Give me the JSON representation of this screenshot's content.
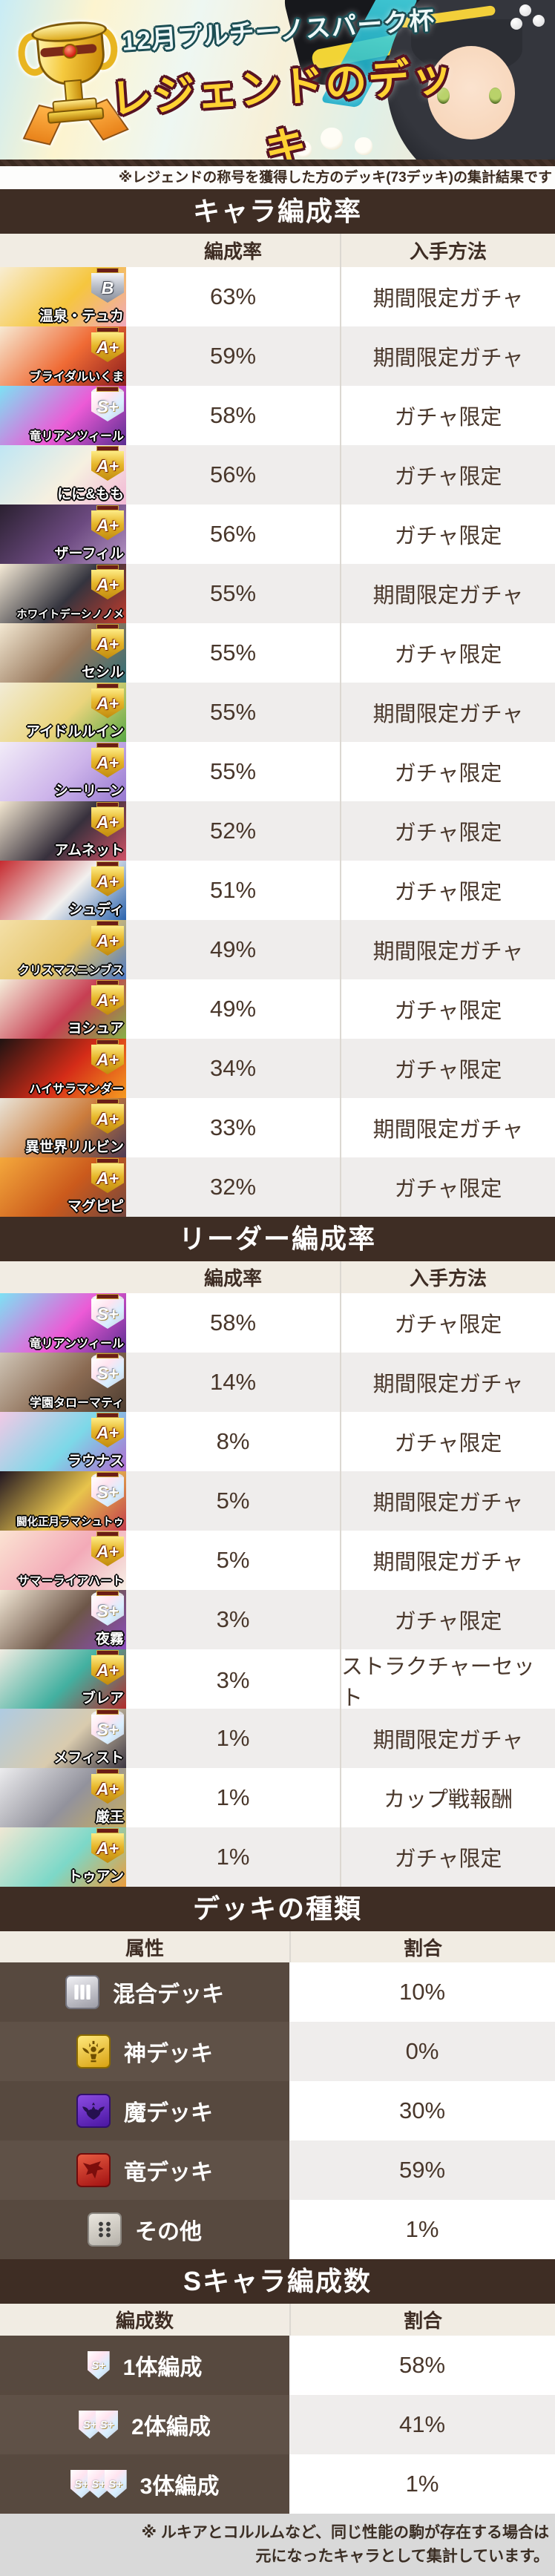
{
  "banner": {
    "subtitle": "12月プルチーノスパーク杯",
    "title": "レジェンドのデッキ"
  },
  "note": "※レジェンドの称号を獲得した方のデッキ(73デッキ)の集計結果です",
  "char_section": {
    "title": "キャラ編成率",
    "col_rate": "編成率",
    "col_method": "入手方法",
    "rows": [
      {
        "name": "温泉・テュカ",
        "badge": "B",
        "rate": "63%",
        "method": "期間限定ガチャ",
        "colors": [
          "#f8edd2",
          "#f6c63e",
          "#f0a8bc"
        ]
      },
      {
        "name": "ブライダルいくま",
        "badge": "A+",
        "rate": "59%",
        "method": "期間限定ガチャ",
        "colors": [
          "#f7e9d2",
          "#ef6a34",
          "#8c1d1d"
        ]
      },
      {
        "name": "竜リアンツィール",
        "badge": "S+",
        "rate": "58%",
        "method": "ガチャ限定",
        "colors": [
          "#7de2f4",
          "#ec5ad6",
          "#5c2e92"
        ]
      },
      {
        "name": "にに&もも",
        "badge": "A+",
        "rate": "56%",
        "method": "ガチャ限定",
        "colors": [
          "#bfe6f4",
          "#f6f0e0",
          "#f2b8d6"
        ]
      },
      {
        "name": "ザーフィル",
        "badge": "A+",
        "rate": "56%",
        "method": "ガチャ限定",
        "colors": [
          "#2a2030",
          "#6c4a80",
          "#b493c4"
        ]
      },
      {
        "name": "ホワイトデーシノノメ",
        "badge": "A+",
        "rate": "55%",
        "method": "期間限定ガチャ",
        "colors": [
          "#f5ead6",
          "#34343e",
          "#c33b2c"
        ]
      },
      {
        "name": "セシル",
        "badge": "A+",
        "rate": "55%",
        "method": "ガチャ限定",
        "colors": [
          "#f3e8d2",
          "#96765a",
          "#2e6e78"
        ]
      },
      {
        "name": "アイドルルイン",
        "badge": "A+",
        "rate": "55%",
        "method": "期間限定ガチャ",
        "colors": [
          "#f2ecd6",
          "#ead47c",
          "#58a844"
        ]
      },
      {
        "name": "シーリーン",
        "badge": "A+",
        "rate": "55%",
        "method": "ガチャ限定",
        "colors": [
          "#f2ecf8",
          "#cdb4ea",
          "#9678d0"
        ]
      },
      {
        "name": "アムネット",
        "badge": "A+",
        "rate": "52%",
        "method": "ガチャ限定",
        "colors": [
          "#f2e6d0",
          "#37303c",
          "#cf5266"
        ]
      },
      {
        "name": "シュディ",
        "badge": "A+",
        "rate": "51%",
        "method": "ガチャ限定",
        "colors": [
          "#c62b30",
          "#f2f0ee",
          "#2a63ae"
        ]
      },
      {
        "name": "クリスマスニンブス",
        "badge": "A+",
        "rate": "49%",
        "method": "期間限定ガチャ",
        "colors": [
          "#f4e0a8",
          "#e5c469",
          "#4a77c4"
        ]
      },
      {
        "name": "ヨシュア",
        "badge": "A+",
        "rate": "49%",
        "method": "ガチャ限定",
        "colors": [
          "#f5edda",
          "#c73e52",
          "#86b048"
        ]
      },
      {
        "name": "ハイサラマンダー",
        "badge": "A+",
        "rate": "34%",
        "method": "ガチャ限定",
        "colors": [
          "#201312",
          "#d52c18",
          "#f69b20"
        ]
      },
      {
        "name": "異世界リルビン",
        "badge": "A+",
        "rate": "33%",
        "method": "期間限定ガチャ",
        "colors": [
          "#e9e4d8",
          "#cc7c3c",
          "#4c3a54"
        ]
      },
      {
        "name": "マグピピ",
        "badge": "A+",
        "rate": "32%",
        "method": "ガチャ限定",
        "colors": [
          "#f4a83c",
          "#cb5a1c",
          "#74463e"
        ]
      }
    ]
  },
  "leader_section": {
    "title": "リーダー編成率",
    "col_rate": "編成率",
    "col_method": "入手方法",
    "rows": [
      {
        "name": "竜リアンツィール",
        "badge": "S+",
        "rate": "58%",
        "method": "ガチャ限定",
        "colors": [
          "#7de2f4",
          "#ec5ad6",
          "#5c2e92"
        ]
      },
      {
        "name": "学園タローマティ",
        "badge": "S+",
        "rate": "14%",
        "method": "期間限定ガチャ",
        "colors": [
          "#cfc5b6",
          "#8a6a52",
          "#4c3c30"
        ]
      },
      {
        "name": "ラウナス",
        "badge": "A+",
        "rate": "8%",
        "method": "ガチャ限定",
        "colors": [
          "#f2c9e6",
          "#7cd8e8",
          "#b06ad0"
        ]
      },
      {
        "name": "闘化正月ラマシュトゥ",
        "badge": "S+",
        "rate": "5%",
        "method": "期間限定ガチャ",
        "colors": [
          "#221722",
          "#e8c44c",
          "#c43c4c"
        ]
      },
      {
        "name": "サマーライアハート",
        "badge": "A+",
        "rate": "5%",
        "method": "期間限定ガチャ",
        "colors": [
          "#fbe3d2",
          "#f3aab8",
          "#f6f0e6"
        ]
      },
      {
        "name": "夜霧",
        "badge": "S+",
        "rate": "3%",
        "method": "ガチャ限定",
        "colors": [
          "#f1e6d4",
          "#6d5648",
          "#8c4cc0"
        ]
      },
      {
        "name": "ブレア",
        "badge": "A+",
        "rate": "3%",
        "method": "ストラクチャーセット",
        "colors": [
          "#f0ece2",
          "#42b0a0",
          "#b22c2c"
        ]
      },
      {
        "name": "メフィスト",
        "badge": "S+",
        "rate": "1%",
        "method": "期間限定ガチャ",
        "colors": [
          "#aecbe2",
          "#d9cbae",
          "#3c3642"
        ]
      },
      {
        "name": "厳王",
        "badge": "A+",
        "rate": "1%",
        "method": "カップ戦報酬",
        "colors": [
          "#ececee",
          "#92929c",
          "#c8ae62"
        ]
      },
      {
        "name": "トゥアン",
        "badge": "A+",
        "rate": "1%",
        "method": "ガチャ限定",
        "colors": [
          "#f0e8d4",
          "#7cd8c8",
          "#ea9c3c"
        ]
      }
    ]
  },
  "deck_section": {
    "title": "デッキの種類",
    "col_attr": "属性",
    "col_ratio": "割合",
    "rows": [
      {
        "label": "混合デッキ",
        "icon": "mixed-deck-icon",
        "ratio": "10%",
        "tile": [
          "#f2f2f6",
          "#9c9ca6"
        ],
        "border": "#73737d"
      },
      {
        "label": "神デッキ",
        "icon": "god-deck-icon",
        "ratio": "0%",
        "tile": [
          "#ffe87c",
          "#d8a212"
        ],
        "border": "#8a6a00"
      },
      {
        "label": "魔デッキ",
        "icon": "demon-deck-icon",
        "ratio": "30%",
        "tile": [
          "#8c4ce2",
          "#4a16a2"
        ],
        "border": "#32106e"
      },
      {
        "label": "竜デッキ",
        "icon": "dragon-deck-icon",
        "ratio": "59%",
        "tile": [
          "#e85c42",
          "#a21212"
        ],
        "border": "#700c0c"
      },
      {
        "label": "その他",
        "icon": "other-deck-icon",
        "ratio": "1%",
        "tile": [
          "#eae6de",
          "#b6b2aa"
        ],
        "border": "#8a8680"
      }
    ]
  },
  "schar_section": {
    "title": "Sキャラ編成数",
    "col_count": "編成数",
    "col_ratio": "割合",
    "rows": [
      {
        "label": "1体編成",
        "badges": 1,
        "badge_text": "S+",
        "ratio": "58%"
      },
      {
        "label": "2体編成",
        "badges": 2,
        "badge_text": "S+",
        "ratio": "41%"
      },
      {
        "label": "3体編成",
        "badges": 3,
        "badge_text": "S+",
        "ratio": "1%"
      }
    ]
  },
  "footer": {
    "line1": "※ ルキアとコルルムなど、同じ性能の駒が存在する場合は",
    "line2": "元になったキャラとして集計しています。"
  }
}
